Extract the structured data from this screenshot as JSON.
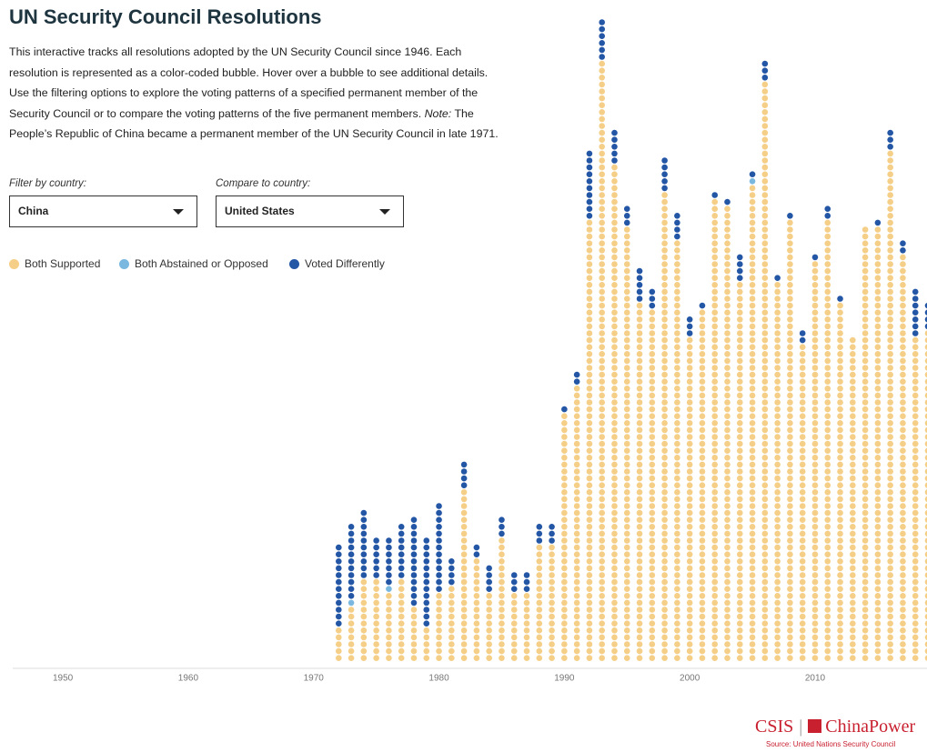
{
  "title": "UN Security Council Resolutions",
  "description": [
    "This interactive tracks all resolutions adopted by the UN Security Council since 1946. Each resolution is represented as a color-coded bubble. Hover over a bubble to see additional details. Use the filtering options to explore the voting patterns of a specified permanent member of the Security Council or to compare the voting patterns of the five permanent members. ",
    "Note:",
    " The People’s Republic of China became a permanent member of the UN Security Council in late 1971."
  ],
  "filters": [
    {
      "label": "Filter by country:",
      "value": "China"
    },
    {
      "label": "Compare to country:",
      "value": "United States"
    }
  ],
  "logo": {
    "left": "CSIS",
    "right": "ChinaPower"
  },
  "source": "Source: United Nations Security Council",
  "chart_data": {
    "type": "dot-column",
    "x": [
      1972,
      1973,
      1974,
      1975,
      1976,
      1977,
      1978,
      1979,
      1980,
      1981,
      1982,
      1983,
      1984,
      1985,
      1986,
      1987,
      1988,
      1989,
      1990,
      1991,
      1992,
      1993,
      1994,
      1995,
      1996,
      1997,
      1998,
      1999,
      2000,
      2001,
      2002,
      2003,
      2004,
      2005,
      2006,
      2007,
      2008,
      2009,
      2010,
      2011,
      2012,
      2013,
      2014,
      2015,
      2016,
      2017,
      2018,
      2019
    ],
    "series": [
      {
        "name": "Both Supported",
        "color": "#f5cf87",
        "values": [
          5,
          8,
          12,
          12,
          10,
          12,
          8,
          5,
          10,
          11,
          25,
          15,
          10,
          18,
          10,
          10,
          17,
          17,
          36,
          40,
          64,
          87,
          72,
          63,
          52,
          51,
          68,
          61,
          47,
          51,
          67,
          66,
          55,
          69,
          84,
          55,
          64,
          46,
          58,
          64,
          52,
          47,
          63,
          63,
          74,
          59,
          47,
          48
        ]
      },
      {
        "name": "Both Abstained or Opposed",
        "color": "#7ab8e0",
        "values": [
          0,
          1,
          0,
          0,
          1,
          0,
          0,
          0,
          0,
          0,
          0,
          0,
          0,
          0,
          0,
          0,
          0,
          0,
          0,
          0,
          0,
          0,
          0,
          0,
          0,
          0,
          0,
          0,
          0,
          0,
          0,
          0,
          0,
          1,
          0,
          0,
          0,
          0,
          0,
          0,
          0,
          0,
          0,
          0,
          0,
          0,
          0,
          0
        ]
      },
      {
        "name": "Voted Differently",
        "color": "#2456a6",
        "values": [
          12,
          11,
          10,
          6,
          7,
          8,
          13,
          13,
          13,
          4,
          4,
          2,
          4,
          3,
          3,
          3,
          3,
          3,
          1,
          2,
          10,
          6,
          5,
          3,
          5,
          3,
          5,
          4,
          3,
          1,
          1,
          1,
          4,
          1,
          3,
          1,
          1,
          2,
          1,
          2,
          1,
          0,
          0,
          1,
          3,
          2,
          7,
          4
        ]
      }
    ],
    "xlim": [
      1946,
      2019
    ],
    "xticks": [
      1950,
      1960,
      1970,
      1980,
      1990,
      2000,
      2010
    ]
  }
}
